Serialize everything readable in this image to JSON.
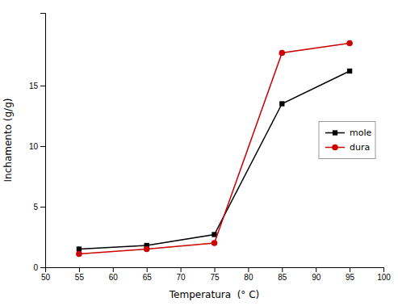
{
  "chart_data": {
    "type": "line",
    "x": [
      55,
      65,
      75,
      85,
      95
    ],
    "series": [
      {
        "name": "mole",
        "color": "#000000",
        "marker": "square",
        "values": [
          1.5,
          1.8,
          2.7,
          13.5,
          16.2
        ]
      },
      {
        "name": "dura",
        "color": "#cc0000",
        "marker": "circle",
        "values": [
          1.1,
          1.5,
          2.0,
          17.7,
          18.5
        ]
      }
    ],
    "xlabel": "Temperatura  (° C)",
    "ylabel": "Inchamento (g/g)",
    "xlim": [
      50,
      100
    ],
    "ylim": [
      0,
      21
    ],
    "xticks": [
      50,
      55,
      60,
      65,
      70,
      75,
      80,
      85,
      90,
      95,
      100
    ],
    "yticks": [
      0,
      5,
      10,
      15
    ],
    "grid": false,
    "legend": "right"
  }
}
